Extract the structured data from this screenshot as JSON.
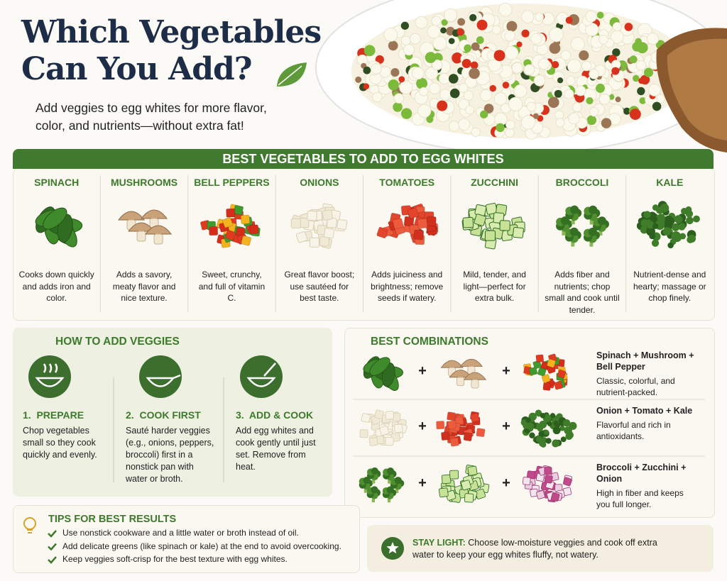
{
  "header": {
    "title_lines": [
      "Which Vegetables",
      "Can You Add?"
    ],
    "subtitle": "Add veggies to egg whites for more flavor, color, and nutrients—without extra fat!"
  },
  "vegetables": {
    "heading": "BEST VEGETABLES TO ADD TO EGG WHITES",
    "items": [
      {
        "name": "SPINACH",
        "description": "Cooks down quickly and adds iron and color."
      },
      {
        "name": "MUSHROOMS",
        "description": "Adds a savory, meaty flavor and nice texture."
      },
      {
        "name": "BELL PEPPERS",
        "description": "Sweet, crunchy, and full of vitamin C."
      },
      {
        "name": "ONIONS",
        "description": "Great flavor boost; use sautéed for best taste."
      },
      {
        "name": "TOMATOES",
        "description": "Adds juiciness and brightness; remove seeds if watery."
      },
      {
        "name": "ZUCCHINI",
        "description": "Mild, tender, and light—perfect for extra bulk."
      },
      {
        "name": "BROCCOLI",
        "description": "Adds fiber and nutrients; chop small and cook until tender."
      },
      {
        "name": "KALE",
        "description": "Nutrient-dense and hearty; massage or chop finely."
      }
    ]
  },
  "how_to": {
    "heading": "HOW TO ADD VEGGIES",
    "steps": [
      {
        "title": "1.  PREPARE",
        "text": "Chop vegetables small so they cook quickly and evenly."
      },
      {
        "title": "2.  COOK FIRST",
        "text": "Sauté harder veggies (e.g., onions, peppers, broccoli) first in a nonstick pan with water or broth."
      },
      {
        "title": "3.  ADD & COOK",
        "text": "Add egg whites and cook gently until just set. Remove from heat."
      }
    ]
  },
  "combinations": {
    "heading": "BEST COMBINATIONS",
    "plus": "+",
    "items": [
      {
        "title": "Spinach + Mushroom + Bell Pepper",
        "text": "Classic, colorful, and nutrient-packed."
      },
      {
        "title": "Onion + Tomato + Kale",
        "text": "Flavorful and rich in antioxidants."
      },
      {
        "title": "Broccoli + Zucchini + Onion",
        "text": "High in fiber and keeps you full longer."
      }
    ]
  },
  "tips": {
    "heading": "TIPS FOR BEST RESULTS",
    "items": [
      "Use nonstick cookware and a little water or broth instead of oil.",
      "Add delicate greens (like spinach or kale) at the end to avoid overcooking.",
      "Keep veggies soft-crisp for the best texture with egg whites."
    ]
  },
  "stay_light": {
    "label": "STAY LIGHT:",
    "text": "Choose low-moisture veggies and cook off extra water to keep your egg whites fluffy, not watery."
  }
}
